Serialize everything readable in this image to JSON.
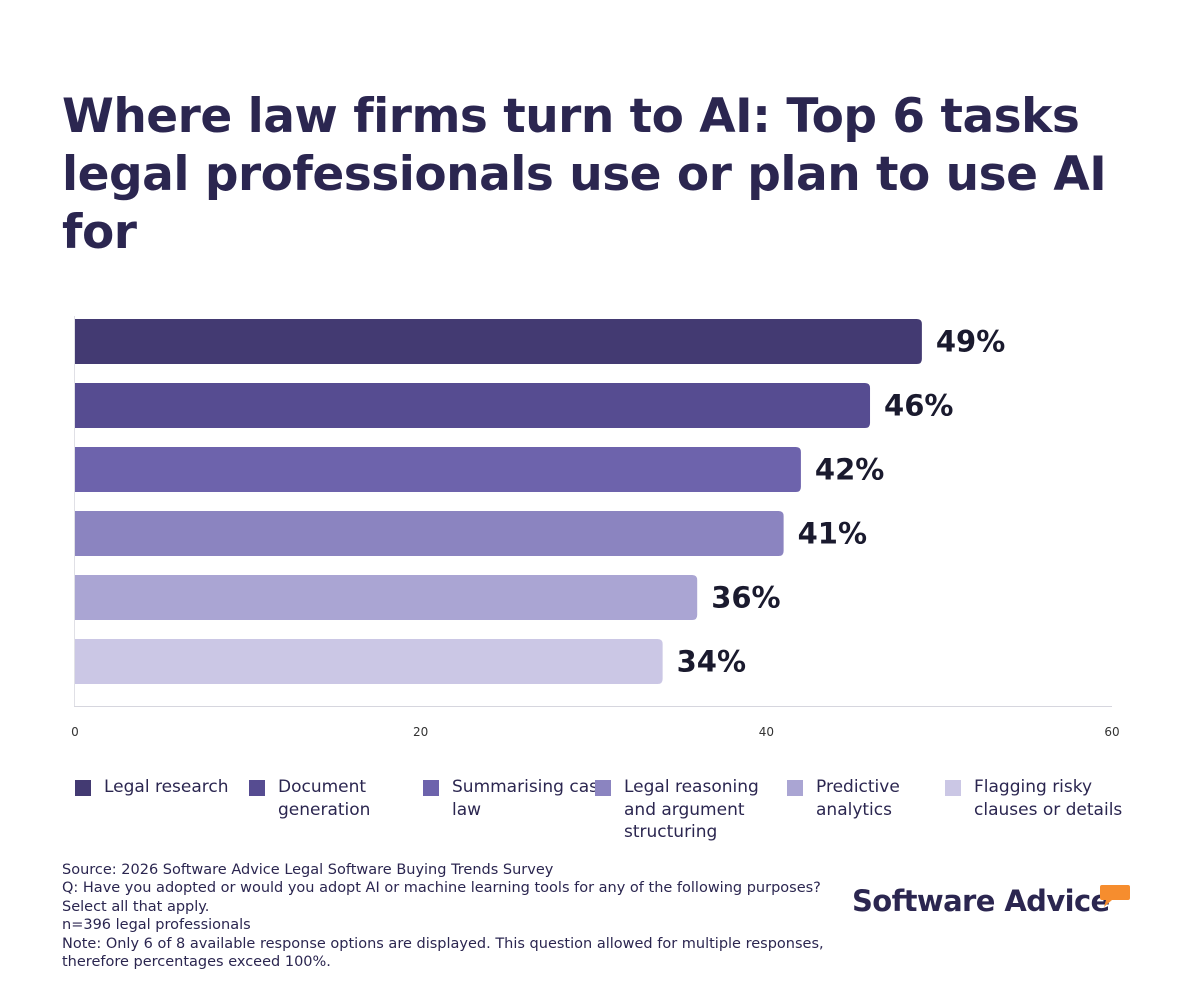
{
  "title": "Where law firms turn to AI: Top 6 tasks legal professionals use or plan to use AI for",
  "chart_data": {
    "type": "bar",
    "orientation": "horizontal",
    "categories": [
      "Legal research",
      "Document generation",
      "Summarising case law",
      "Legal reasoning and argument structuring",
      "Predictive analytics",
      "Flagging risky clauses or details"
    ],
    "values": [
      49,
      46,
      42,
      41,
      36,
      34
    ],
    "data_labels": [
      "49%",
      "46%",
      "42%",
      "41%",
      "36%",
      "34%"
    ],
    "colors": [
      "#433a72",
      "#564c91",
      "#6d63ac",
      "#8b84c0",
      "#aaa5d3",
      "#cbc7e5"
    ],
    "xlim": [
      0,
      60
    ],
    "xticks": [
      0,
      20,
      40,
      60
    ],
    "xtick_labels": [
      "0",
      "20",
      "40",
      "60"
    ],
    "grid": false,
    "legend_position": "bottom"
  },
  "legend": [
    {
      "label": "Legal research",
      "color": "#433a72"
    },
    {
      "label": "Document generation",
      "color": "#564c91"
    },
    {
      "label": "Summarising case law",
      "color": "#6d63ac"
    },
    {
      "label": "Legal reasoning and argument structuring",
      "color": "#8b84c0"
    },
    {
      "label": "Predictive analytics",
      "color": "#aaa5d3"
    },
    {
      "label": "Flagging risky clauses or details",
      "color": "#cbc7e5"
    }
  ],
  "footer": {
    "source": "Source: 2026 Software Advice Legal Software Buying Trends Survey",
    "question": "Q: Have you adopted or would you adopt AI or machine learning tools for any of the following purposes?\nSelect all that apply.",
    "sample": "n=396 legal professionals",
    "note": "Note: Only 6 of 8 available response options are displayed. This question allowed for multiple responses,\ntherefore percentages exceed 100%."
  },
  "brand": {
    "name": "Software Advice",
    "accent_color": "#f68d2e"
  }
}
